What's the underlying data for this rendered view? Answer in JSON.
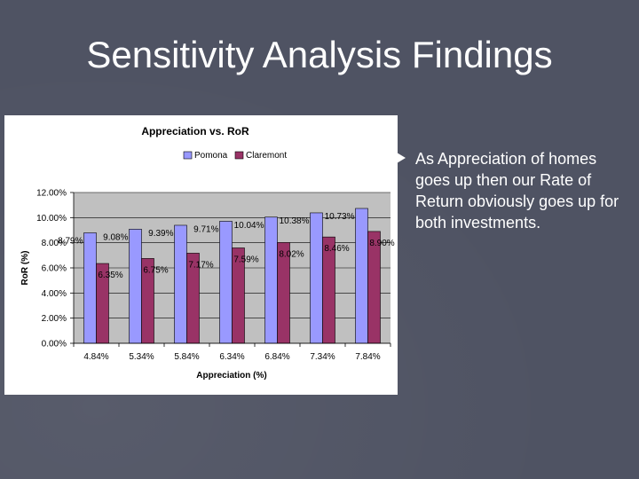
{
  "slide": {
    "title": "Sensitivity Analysis Findings",
    "body_text": "As Appreciation of homes goes up then our Rate of Return obviously goes up for both investments."
  },
  "colors": {
    "background": "#4f5363",
    "pomona": "#9999ff",
    "claremont": "#993366",
    "plot_area": "#c0c0c0"
  },
  "chart_data": {
    "type": "bar",
    "title": "Appreciation vs. RoR",
    "xlabel": "Appreciation (%)",
    "ylabel": "RoR (%)",
    "categories": [
      "4.84%",
      "5.34%",
      "5.84%",
      "6.34%",
      "6.84%",
      "7.34%",
      "7.84%"
    ],
    "series": [
      {
        "name": "Pomona",
        "values": [
          8.79,
          9.08,
          9.39,
          9.71,
          10.04,
          10.38,
          10.73
        ],
        "labels": [
          "8.79%",
          "9.08%",
          "9.39%",
          "9.71%",
          "10.04%",
          "10.38%",
          "10.73%"
        ]
      },
      {
        "name": "Claremont",
        "values": [
          6.35,
          6.75,
          7.17,
          7.59,
          8.02,
          8.46,
          8.9
        ],
        "labels": [
          "6.35%",
          "6.75%",
          "7.17%",
          "7.59%",
          "8.02%",
          "8.46%",
          "8.90%"
        ]
      }
    ],
    "ylim": [
      0,
      12
    ],
    "yticks": [
      0,
      2,
      4,
      6,
      8,
      10,
      12
    ],
    "ytick_labels": [
      "0.00%",
      "2.00%",
      "4.00%",
      "6.00%",
      "8.00%",
      "10.00%",
      "12.00%"
    ],
    "legend": "top-center"
  }
}
